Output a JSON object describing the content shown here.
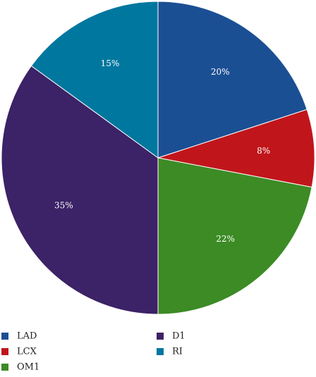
{
  "chart_data": {
    "type": "pie",
    "title": "",
    "categories": [
      "LAD",
      "LCX",
      "OM1",
      "D1",
      "RI"
    ],
    "values": [
      20,
      8,
      22,
      35,
      15
    ],
    "slice_labels": [
      "20%",
      "8%",
      "22%",
      "35%",
      "15%"
    ],
    "colors": [
      "#1b4f93",
      "#c0161b",
      "#3c8b25",
      "#3c2266",
      "#00779e"
    ],
    "legend": {
      "placement": "bottom",
      "entries": [
        {
          "label": "LAD",
          "color": "#1b4f93"
        },
        {
          "label": "D1",
          "color": "#3c2266"
        },
        {
          "label": "LCX",
          "color": "#c0161b"
        },
        {
          "label": "RI",
          "color": "#00779e"
        },
        {
          "label": "OM1",
          "color": "#3c8b25"
        }
      ]
    },
    "start_angle_deg": 0,
    "direction": "clockwise"
  }
}
